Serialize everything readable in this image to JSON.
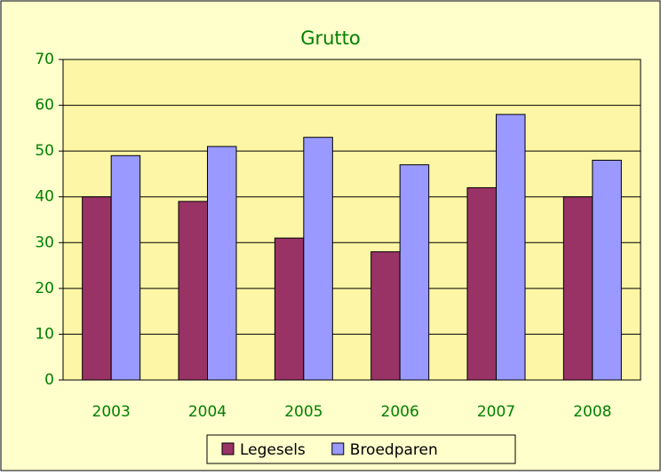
{
  "chart_data": {
    "type": "bar",
    "title": "Grutto",
    "categories": [
      "2003",
      "2004",
      "2005",
      "2006",
      "2007",
      "2008"
    ],
    "series": [
      {
        "name": "Legesels",
        "color": "#993366",
        "values": [
          40,
          39,
          31,
          28,
          42,
          40
        ]
      },
      {
        "name": "Broedparen",
        "color": "#9999ff",
        "values": [
          49,
          51,
          53,
          47,
          58,
          48
        ]
      }
    ],
    "ylim": [
      0,
      70
    ],
    "yticks": [
      0,
      10,
      20,
      30,
      40,
      50,
      60,
      70
    ],
    "grid": true,
    "legend": "bottom"
  }
}
